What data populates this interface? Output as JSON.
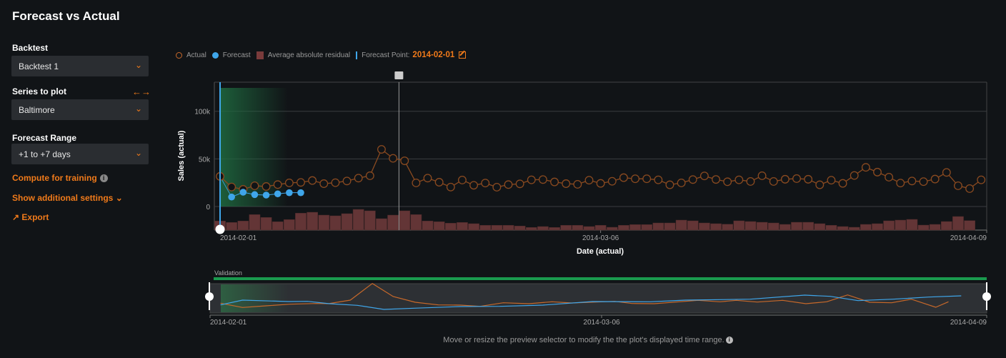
{
  "page": {
    "title": "Forecast vs Actual"
  },
  "sidebar": {
    "backtest_label": "Backtest",
    "backtest_value": "Backtest 1",
    "series_label": "Series to plot",
    "series_value": "Baltimore",
    "range_label": "Forecast Range",
    "range_value": "+1 to +7 days",
    "compute_link": "Compute for training",
    "settings_link": "Show additional settings",
    "export_link": "Export"
  },
  "legend": {
    "actual": "Actual",
    "forecast": "Forecast",
    "residual": "Average absolute residual",
    "forecast_point_label": "Forecast Point:",
    "forecast_point_value": "2014-02-01"
  },
  "colors": {
    "actual": "#c8692a",
    "forecast": "#3fa6ea",
    "residual": "#633536",
    "accent": "#f07a1a",
    "validation": "#1a9a4e"
  },
  "preview": {
    "band_label": "Validation",
    "hint": "Move or resize the preview selector to modify the the plot's displayed time range.",
    "x_ticks": [
      "2014-02-01",
      "2014-03-06",
      "2014-04-09"
    ],
    "actual": [
      [
        0.9,
        13.7
      ],
      [
        2.8,
        7.7
      ],
      [
        4.8,
        10
      ],
      [
        6.9,
        12.3
      ],
      [
        9.2,
        13.3
      ],
      [
        10.2,
        13
      ],
      [
        12.1,
        18
      ],
      [
        14,
        41.3
      ],
      [
        15.8,
        23
      ],
      [
        17.7,
        15
      ],
      [
        19.7,
        11.3
      ],
      [
        21.6,
        11
      ],
      [
        23.3,
        9.3
      ],
      [
        25.3,
        14.3
      ],
      [
        27.5,
        13
      ],
      [
        29.5,
        15.7
      ],
      [
        31.2,
        14
      ],
      [
        34.9,
        16.3
      ],
      [
        36.4,
        13.3
      ],
      [
        38.3,
        13
      ],
      [
        42.1,
        17.7
      ],
      [
        44,
        15.7
      ],
      [
        45.4,
        17.7
      ],
      [
        47.2,
        15.3
      ],
      [
        49.4,
        17.7
      ],
      [
        51.4,
        13
      ],
      [
        53.2,
        15.7
      ],
      [
        55,
        25.3
      ],
      [
        56.9,
        15
      ],
      [
        58.8,
        14.3
      ],
      [
        60.5,
        19.3
      ],
      [
        62.6,
        8
      ],
      [
        63.7,
        15.7
      ]
    ],
    "forecast": [
      [
        0.9,
        11.3
      ],
      [
        2.8,
        18
      ],
      [
        6.8,
        16
      ],
      [
        8.4,
        16.3
      ],
      [
        10.3,
        13
      ],
      [
        12.7,
        10.7
      ],
      [
        15,
        5
      ],
      [
        17.6,
        6.7
      ],
      [
        21.6,
        9
      ],
      [
        25,
        9.3
      ],
      [
        28.7,
        11
      ],
      [
        33,
        16
      ],
      [
        38,
        15.7
      ],
      [
        41,
        18
      ],
      [
        46.6,
        19.3
      ],
      [
        51.3,
        25
      ],
      [
        53.5,
        23.3
      ],
      [
        55.9,
        17.3
      ],
      [
        58.9,
        19.3
      ],
      [
        62,
        22.3
      ],
      [
        64.8,
        24
      ]
    ]
  },
  "chart_data": {
    "type": "line",
    "title": "Forecast vs Actual",
    "xlabel": "Date (actual)",
    "ylabel": "Sales (actual)",
    "x_start": "2014-02-01",
    "x_ticks": [
      {
        "day": 0,
        "label": "2014-02-01"
      },
      {
        "day": 33,
        "label": "2014-03-06"
      },
      {
        "day": 67,
        "label": "2014-04-09"
      }
    ],
    "y_ticks": [
      {
        "value": 0,
        "label": "0"
      },
      {
        "value": 50,
        "label": "50k"
      },
      {
        "value": 100,
        "label": "100k"
      }
    ],
    "y_unit": "thousands",
    "ylim": [
      -25,
      130
    ],
    "grid": true,
    "legend_position": "top-left",
    "forecast_point_day": 0,
    "marker_day": 15.5,
    "series": [
      {
        "name": "Actual",
        "type": "line-markers",
        "start_day": 0,
        "values": [
          31.6,
          20.5,
          18,
          21.8,
          21,
          23,
          24.8,
          25.3,
          27.3,
          24,
          25,
          26.8,
          29.8,
          32.3,
          60,
          50.6,
          48,
          24.8,
          29.8,
          25.5,
          20.4,
          27.8,
          22.3,
          24.6,
          20.3,
          23,
          23.8,
          28,
          28.3,
          25.8,
          24,
          23.3,
          27.6,
          24.3,
          26.5,
          30.3,
          29.1,
          29.1,
          28,
          22.8,
          24.8,
          28.3,
          32.1,
          28.4,
          26,
          28,
          26.3,
          32.3,
          26.3,
          28.6,
          29.3,
          28.6,
          22.8,
          27.6,
          24.3,
          32.6,
          41.1,
          36.1,
          30.8,
          24.6,
          26.8,
          26.1,
          28.8,
          35.8,
          21.8,
          18.8,
          28
        ]
      },
      {
        "name": "Forecast",
        "type": "line-markers",
        "start_day": 1,
        "values": [
          10,
          15,
          12.5,
          12,
          13.3,
          14.5,
          14.5
        ]
      },
      {
        "name": "Average absolute residual",
        "type": "bar",
        "start_day": 0,
        "scale": "relative",
        "values": [
          12.7,
          10.7,
          12.7,
          21.7,
          17.7,
          11.7,
          14.7,
          23.7,
          25,
          21,
          20,
          23,
          29,
          27,
          16,
          21,
          27,
          21.7,
          12.7,
          11.7,
          9.7,
          10.7,
          9,
          6.7,
          6.7,
          6.7,
          5.7,
          3.7,
          5,
          3.7,
          6.7,
          6.7,
          5,
          6.7,
          4,
          6.7,
          7.7,
          7.7,
          10,
          10,
          14,
          13,
          10,
          9,
          8.3,
          13,
          12,
          11,
          10,
          8,
          11,
          11,
          9,
          6.7,
          5,
          4,
          8,
          9,
          13,
          14,
          15,
          7,
          8,
          12,
          19,
          13.3,
          null
        ]
      }
    ]
  }
}
